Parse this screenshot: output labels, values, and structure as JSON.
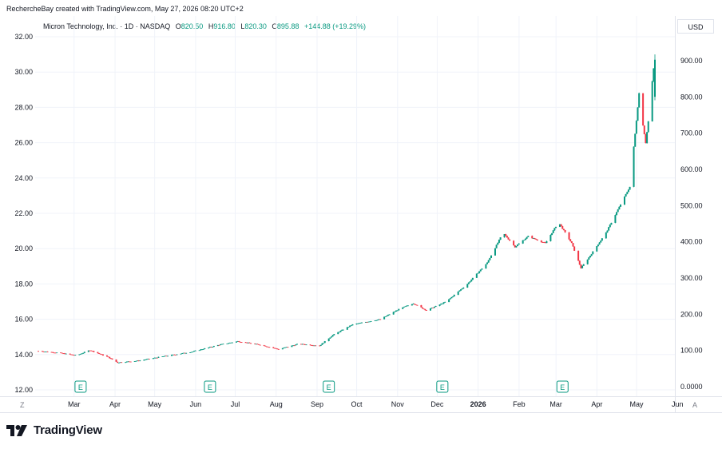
{
  "header": {
    "created_by": "RechercheBay created with TradingView.com, May 27, 2026 08:20 UTC+2"
  },
  "legend": {
    "symbol": "Micron Technology, Inc. · 1D · NASDAQ",
    "open_label": "O",
    "open_value": "820.50",
    "high_label": "H",
    "high_value": "916.80",
    "low_label": "L",
    "low_value": "820.30",
    "close_label": "C",
    "close_value": "895.88",
    "change": "+144.88 (+19.29%)"
  },
  "currency_button": "USD",
  "goto_button": "Z",
  "auto_button": "A",
  "brand": "TradingView",
  "colors": {
    "up": "#089981",
    "down": "#f23645",
    "grid": "#f0f3fa",
    "axis_text": "#131722"
  },
  "icons": [
    "tradingview-logo-icon",
    "earnings-marker-icon"
  ],
  "chart_data": {
    "type": "candlestick",
    "title": "Micron Technology, Inc. · 1D · NASDAQ",
    "x_labels": [
      "Mar",
      "Apr",
      "May",
      "Jun",
      "Jul",
      "Aug",
      "Sep",
      "Oct",
      "Nov",
      "Dec",
      "2026",
      "Feb",
      "Mar",
      "Apr",
      "May",
      "Jun"
    ],
    "left_axis": {
      "ticks": [
        "12.00",
        "14.00",
        "16.00",
        "18.00",
        "20.00",
        "22.00",
        "24.00",
        "26.00",
        "28.00",
        "30.00",
        "32.00"
      ],
      "range": [
        12,
        32
      ]
    },
    "right_axis": {
      "ticks": [
        "0.0000",
        "100.00",
        "200.00",
        "300.00",
        "400.00",
        "500.00",
        "600.00",
        "700.00",
        "800.00",
        "900.00"
      ],
      "range": [
        0,
        900
      ],
      "unit": "USD"
    },
    "earnings_marker_label": "E",
    "earnings_marker_months": [
      "Mar",
      "Jul",
      "Sep",
      "Dec",
      "Mar"
    ],
    "series": [
      {
        "date": "2025-02-14",
        "value": 14.2
      },
      {
        "date": "2025-03-01",
        "value": 14.1
      },
      {
        "date": "2025-03-15",
        "value": 13.95
      },
      {
        "date": "2025-03-25",
        "value": 14.25
      },
      {
        "date": "2025-04-08",
        "value": 13.85
      },
      {
        "date": "2025-04-15",
        "value": 13.55
      },
      {
        "date": "2025-05-01",
        "value": 13.65
      },
      {
        "date": "2025-05-20",
        "value": 13.9
      },
      {
        "date": "2025-06-10",
        "value": 14.15
      },
      {
        "date": "2025-07-01",
        "value": 14.55
      },
      {
        "date": "2025-07-15",
        "value": 14.75
      },
      {
        "date": "2025-08-01",
        "value": 14.55
      },
      {
        "date": "2025-08-15",
        "value": 14.3
      },
      {
        "date": "2025-08-30",
        "value": 14.6
      },
      {
        "date": "2025-09-15",
        "value": 14.5
      },
      {
        "date": "2025-09-25",
        "value": 15.1
      },
      {
        "date": "2025-10-10",
        "value": 15.7
      },
      {
        "date": "2025-10-31",
        "value": 16.0
      },
      {
        "date": "2025-11-15",
        "value": 16.6
      },
      {
        "date": "2025-11-25",
        "value": 16.9
      },
      {
        "date": "2025-12-05",
        "value": 16.5
      },
      {
        "date": "2025-12-20",
        "value": 17.0
      },
      {
        "date": "2026-01-05",
        "value": 18.0
      },
      {
        "date": "2026-01-20",
        "value": 19.2
      },
      {
        "date": "2026-02-01",
        "value": 20.9
      },
      {
        "date": "2026-02-10",
        "value": 20.1
      },
      {
        "date": "2026-02-20",
        "value": 20.7
      },
      {
        "date": "2026-03-05",
        "value": 20.3
      },
      {
        "date": "2026-03-15",
        "value": 21.5
      },
      {
        "date": "2026-03-25",
        "value": 20.3
      },
      {
        "date": "2026-04-01",
        "value": 18.9
      },
      {
        "date": "2026-04-08",
        "value": 19.6
      },
      {
        "date": "2026-04-20",
        "value": 20.9
      },
      {
        "date": "2026-05-01",
        "value": 22.5
      },
      {
        "date": "2026-05-08",
        "value": 23.5
      },
      {
        "date": "2026-05-12",
        "value": 26.5
      },
      {
        "date": "2026-05-15",
        "value": 28.8
      },
      {
        "date": "2026-05-18",
        "value": 27.0
      },
      {
        "date": "2026-05-20",
        "value": 26.0
      },
      {
        "date": "2026-05-22",
        "value": 27.2
      },
      {
        "date": "2026-05-26",
        "value": 30.2
      }
    ]
  }
}
